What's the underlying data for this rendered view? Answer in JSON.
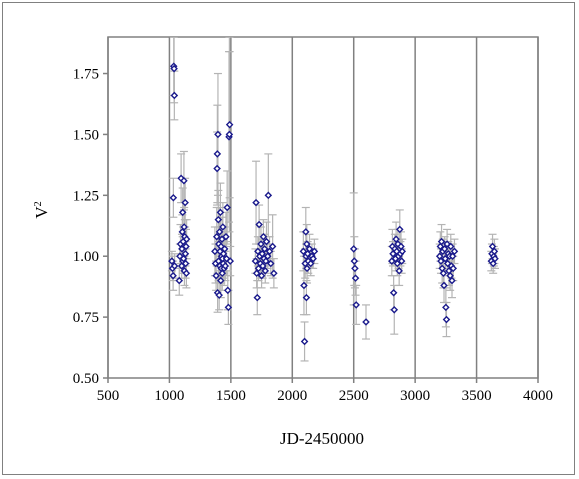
{
  "chart_data": {
    "type": "scatter",
    "xlabel": "JD-2450000",
    "ylabel": "V",
    "ylabel_sup": "2",
    "xlim": [
      500,
      4000
    ],
    "ylim": [
      0.5,
      1.9
    ],
    "xticks": [
      500,
      1000,
      1500,
      2000,
      2500,
      3000,
      3500,
      4000
    ],
    "yticks": [
      0.5,
      0.75,
      1.0,
      1.25,
      1.5,
      1.75
    ],
    "ytick_labels": [
      "0.50",
      "0.75",
      "1.00",
      "1.25",
      "1.50",
      "1.75"
    ],
    "grid": true,
    "legend": "none",
    "colors": {
      "marker": "#1a1a8c",
      "errorbar": "#b4b4b4",
      "grid": "#808080"
    },
    "points": [
      {
        "x": 1020,
        "y": 0.98,
        "e": 0.04
      },
      {
        "x": 1025,
        "y": 0.95,
        "e": 0.05
      },
      {
        "x": 1030,
        "y": 0.92,
        "e": 0.06
      },
      {
        "x": 1032,
        "y": 1.24,
        "e": 0.08
      },
      {
        "x": 1035,
        "y": 1.78,
        "e": 0.12
      },
      {
        "x": 1038,
        "y": 1.77,
        "e": 0.14
      },
      {
        "x": 1040,
        "y": 1.66,
        "e": 0.1
      },
      {
        "x": 1042,
        "y": 0.96,
        "e": 0.05
      },
      {
        "x": 1080,
        "y": 0.9,
        "e": 0.06
      },
      {
        "x": 1085,
        "y": 1.0,
        "e": 0.05
      },
      {
        "x": 1090,
        "y": 1.05,
        "e": 0.08
      },
      {
        "x": 1095,
        "y": 1.32,
        "e": 0.1
      },
      {
        "x": 1100,
        "y": 0.96,
        "e": 0.05
      },
      {
        "x": 1102,
        "y": 1.03,
        "e": 0.06
      },
      {
        "x": 1105,
        "y": 1.1,
        "e": 0.07
      },
      {
        "x": 1108,
        "y": 1.18,
        "e": 0.1
      },
      {
        "x": 1110,
        "y": 0.98,
        "e": 0.05
      },
      {
        "x": 1112,
        "y": 1.06,
        "e": 0.06
      },
      {
        "x": 1115,
        "y": 0.99,
        "e": 0.05
      },
      {
        "x": 1118,
        "y": 1.31,
        "e": 0.12
      },
      {
        "x": 1120,
        "y": 1.12,
        "e": 0.08
      },
      {
        "x": 1122,
        "y": 0.94,
        "e": 0.06
      },
      {
        "x": 1125,
        "y": 1.08,
        "e": 0.07
      },
      {
        "x": 1128,
        "y": 1.22,
        "e": 0.1
      },
      {
        "x": 1130,
        "y": 1.01,
        "e": 0.05
      },
      {
        "x": 1132,
        "y": 0.97,
        "e": 0.06
      },
      {
        "x": 1135,
        "y": 1.04,
        "e": 0.07
      },
      {
        "x": 1138,
        "y": 0.93,
        "e": 0.06
      },
      {
        "x": 1140,
        "y": 1.07,
        "e": 0.08
      },
      {
        "x": 1370,
        "y": 1.02,
        "e": 0.1
      },
      {
        "x": 1375,
        "y": 0.97,
        "e": 0.08
      },
      {
        "x": 1380,
        "y": 0.92,
        "e": 0.06
      },
      {
        "x": 1385,
        "y": 1.08,
        "e": 0.12
      },
      {
        "x": 1388,
        "y": 1.36,
        "e": 0.15
      },
      {
        "x": 1390,
        "y": 1.42,
        "e": 0.2
      },
      {
        "x": 1392,
        "y": 0.85,
        "e": 0.08
      },
      {
        "x": 1395,
        "y": 1.5,
        "e": 0.25
      },
      {
        "x": 1398,
        "y": 1.15,
        "e": 0.12
      },
      {
        "x": 1400,
        "y": 0.98,
        "e": 0.08
      },
      {
        "x": 1402,
        "y": 1.05,
        "e": 0.07
      },
      {
        "x": 1405,
        "y": 0.84,
        "e": 0.06
      },
      {
        "x": 1408,
        "y": 1.1,
        "e": 0.1
      },
      {
        "x": 1410,
        "y": 0.96,
        "e": 0.07
      },
      {
        "x": 1412,
        "y": 1.02,
        "e": 0.08
      },
      {
        "x": 1415,
        "y": 1.18,
        "e": 0.12
      },
      {
        "x": 1418,
        "y": 0.9,
        "e": 0.07
      },
      {
        "x": 1420,
        "y": 1.04,
        "e": 0.08
      },
      {
        "x": 1422,
        "y": 0.95,
        "e": 0.06
      },
      {
        "x": 1425,
        "y": 1.0,
        "e": 0.1
      },
      {
        "x": 1428,
        "y": 1.07,
        "e": 0.09
      },
      {
        "x": 1430,
        "y": 0.93,
        "e": 0.07
      },
      {
        "x": 1432,
        "y": 0.99,
        "e": 0.06
      },
      {
        "x": 1435,
        "y": 1.12,
        "e": 0.1
      },
      {
        "x": 1438,
        "y": 0.97,
        "e": 0.06
      },
      {
        "x": 1440,
        "y": 1.01,
        "e": 0.08
      },
      {
        "x": 1445,
        "y": 0.95,
        "e": 0.07
      },
      {
        "x": 1450,
        "y": 1.03,
        "e": 0.09
      },
      {
        "x": 1455,
        "y": 0.96,
        "e": 0.06
      },
      {
        "x": 1460,
        "y": 1.08,
        "e": 0.1
      },
      {
        "x": 1465,
        "y": 0.99,
        "e": 0.07
      },
      {
        "x": 1470,
        "y": 1.2,
        "e": 0.15
      },
      {
        "x": 1475,
        "y": 0.86,
        "e": 0.08
      },
      {
        "x": 1480,
        "y": 0.79,
        "e": 0.07
      },
      {
        "x": 1485,
        "y": 1.49,
        "e": 0.35
      },
      {
        "x": 1488,
        "y": 1.5,
        "e": 0.4
      },
      {
        "x": 1490,
        "y": 1.54,
        "e": 0.3
      },
      {
        "x": 1495,
        "y": 0.98,
        "e": 0.06
      },
      {
        "x": 1700,
        "y": 0.98,
        "e": 0.05
      },
      {
        "x": 1705,
        "y": 1.22,
        "e": 0.17
      },
      {
        "x": 1710,
        "y": 0.93,
        "e": 0.06
      },
      {
        "x": 1715,
        "y": 0.83,
        "e": 0.07
      },
      {
        "x": 1720,
        "y": 1.02,
        "e": 0.06
      },
      {
        "x": 1725,
        "y": 0.95,
        "e": 0.05
      },
      {
        "x": 1730,
        "y": 1.13,
        "e": 0.08
      },
      {
        "x": 1735,
        "y": 1.0,
        "e": 0.05
      },
      {
        "x": 1740,
        "y": 0.97,
        "e": 0.06
      },
      {
        "x": 1745,
        "y": 1.05,
        "e": 0.07
      },
      {
        "x": 1750,
        "y": 0.92,
        "e": 0.05
      },
      {
        "x": 1755,
        "y": 1.01,
        "e": 0.06
      },
      {
        "x": 1760,
        "y": 0.96,
        "e": 0.05
      },
      {
        "x": 1765,
        "y": 1.08,
        "e": 0.07
      },
      {
        "x": 1770,
        "y": 0.99,
        "e": 0.05
      },
      {
        "x": 1775,
        "y": 1.03,
        "e": 0.06
      },
      {
        "x": 1780,
        "y": 0.94,
        "e": 0.05
      },
      {
        "x": 1785,
        "y": 0.98,
        "e": 0.05
      },
      {
        "x": 1790,
        "y": 1.06,
        "e": 0.08
      },
      {
        "x": 1800,
        "y": 1.0,
        "e": 0.05
      },
      {
        "x": 1805,
        "y": 1.25,
        "e": 0.17
      },
      {
        "x": 1815,
        "y": 1.02,
        "e": 0.06
      },
      {
        "x": 1825,
        "y": 0.97,
        "e": 0.05
      },
      {
        "x": 1840,
        "y": 1.04,
        "e": 0.13
      },
      {
        "x": 1850,
        "y": 0.93,
        "e": 0.06
      },
      {
        "x": 2090,
        "y": 1.02,
        "e": 0.08
      },
      {
        "x": 2095,
        "y": 0.88,
        "e": 0.12
      },
      {
        "x": 2100,
        "y": 0.65,
        "e": 0.08
      },
      {
        "x": 2105,
        "y": 0.97,
        "e": 0.06
      },
      {
        "x": 2110,
        "y": 1.1,
        "e": 0.1
      },
      {
        "x": 2112,
        "y": 1.0,
        "e": 0.05
      },
      {
        "x": 2115,
        "y": 0.83,
        "e": 0.07
      },
      {
        "x": 2118,
        "y": 1.05,
        "e": 0.08
      },
      {
        "x": 2120,
        "y": 0.95,
        "e": 0.06
      },
      {
        "x": 2125,
        "y": 1.01,
        "e": 0.05
      },
      {
        "x": 2130,
        "y": 0.98,
        "e": 0.05
      },
      {
        "x": 2140,
        "y": 1.03,
        "e": 0.06
      },
      {
        "x": 2150,
        "y": 0.97,
        "e": 0.05
      },
      {
        "x": 2160,
        "y": 1.0,
        "e": 0.05
      },
      {
        "x": 2170,
        "y": 0.99,
        "e": 0.04
      },
      {
        "x": 2180,
        "y": 1.02,
        "e": 0.05
      },
      {
        "x": 2500,
        "y": 1.03,
        "e": 0.23
      },
      {
        "x": 2505,
        "y": 0.98,
        "e": 0.1
      },
      {
        "x": 2510,
        "y": 0.95,
        "e": 0.08
      },
      {
        "x": 2515,
        "y": 0.91,
        "e": 0.07
      },
      {
        "x": 2520,
        "y": 0.8,
        "e": 0.08
      },
      {
        "x": 2600,
        "y": 0.73,
        "e": 0.07
      },
      {
        "x": 2810,
        "y": 0.98,
        "e": 0.06
      },
      {
        "x": 2815,
        "y": 1.04,
        "e": 0.07
      },
      {
        "x": 2820,
        "y": 1.01,
        "e": 0.05
      },
      {
        "x": 2825,
        "y": 0.85,
        "e": 0.07
      },
      {
        "x": 2830,
        "y": 0.78,
        "e": 0.1
      },
      {
        "x": 2835,
        "y": 1.03,
        "e": 0.06
      },
      {
        "x": 2840,
        "y": 0.99,
        "e": 0.05
      },
      {
        "x": 2845,
        "y": 1.07,
        "e": 0.07
      },
      {
        "x": 2850,
        "y": 1.02,
        "e": 0.05
      },
      {
        "x": 2855,
        "y": 0.97,
        "e": 0.05
      },
      {
        "x": 2860,
        "y": 1.05,
        "e": 0.06
      },
      {
        "x": 2865,
        "y": 1.0,
        "e": 0.05
      },
      {
        "x": 2870,
        "y": 0.94,
        "e": 0.06
      },
      {
        "x": 2875,
        "y": 1.11,
        "e": 0.08
      },
      {
        "x": 2880,
        "y": 1.01,
        "e": 0.05
      },
      {
        "x": 2885,
        "y": 1.04,
        "e": 0.06
      },
      {
        "x": 2890,
        "y": 0.98,
        "e": 0.05
      },
      {
        "x": 2895,
        "y": 1.02,
        "e": 0.05
      },
      {
        "x": 3200,
        "y": 1.0,
        "e": 0.05
      },
      {
        "x": 3205,
        "y": 1.04,
        "e": 0.06
      },
      {
        "x": 3210,
        "y": 0.98,
        "e": 0.05
      },
      {
        "x": 3215,
        "y": 1.06,
        "e": 0.07
      },
      {
        "x": 3220,
        "y": 0.95,
        "e": 0.06
      },
      {
        "x": 3225,
        "y": 1.02,
        "e": 0.05
      },
      {
        "x": 3230,
        "y": 0.93,
        "e": 0.06
      },
      {
        "x": 3235,
        "y": 0.88,
        "e": 0.07
      },
      {
        "x": 3240,
        "y": 1.03,
        "e": 0.05
      },
      {
        "x": 3245,
        "y": 0.99,
        "e": 0.05
      },
      {
        "x": 3250,
        "y": 0.79,
        "e": 0.08
      },
      {
        "x": 3255,
        "y": 0.74,
        "e": 0.07
      },
      {
        "x": 3260,
        "y": 1.05,
        "e": 0.06
      },
      {
        "x": 3265,
        "y": 0.97,
        "e": 0.05
      },
      {
        "x": 3270,
        "y": 1.01,
        "e": 0.05
      },
      {
        "x": 3275,
        "y": 0.94,
        "e": 0.06
      },
      {
        "x": 3280,
        "y": 1.0,
        "e": 0.05
      },
      {
        "x": 3285,
        "y": 0.92,
        "e": 0.06
      },
      {
        "x": 3290,
        "y": 1.04,
        "e": 0.05
      },
      {
        "x": 3295,
        "y": 0.96,
        "e": 0.05
      },
      {
        "x": 3300,
        "y": 0.9,
        "e": 0.07
      },
      {
        "x": 3305,
        "y": 1.0,
        "e": 0.05
      },
      {
        "x": 3310,
        "y": 0.95,
        "e": 0.05
      },
      {
        "x": 3320,
        "y": 1.02,
        "e": 0.05
      },
      {
        "x": 3620,
        "y": 0.98,
        "e": 0.04
      },
      {
        "x": 3625,
        "y": 1.01,
        "e": 0.04
      },
      {
        "x": 3630,
        "y": 1.04,
        "e": 0.05
      },
      {
        "x": 3635,
        "y": 0.97,
        "e": 0.04
      },
      {
        "x": 3640,
        "y": 1.0,
        "e": 0.04
      },
      {
        "x": 3645,
        "y": 1.02,
        "e": 0.05
      },
      {
        "x": 3650,
        "y": 0.99,
        "e": 0.04
      }
    ]
  }
}
